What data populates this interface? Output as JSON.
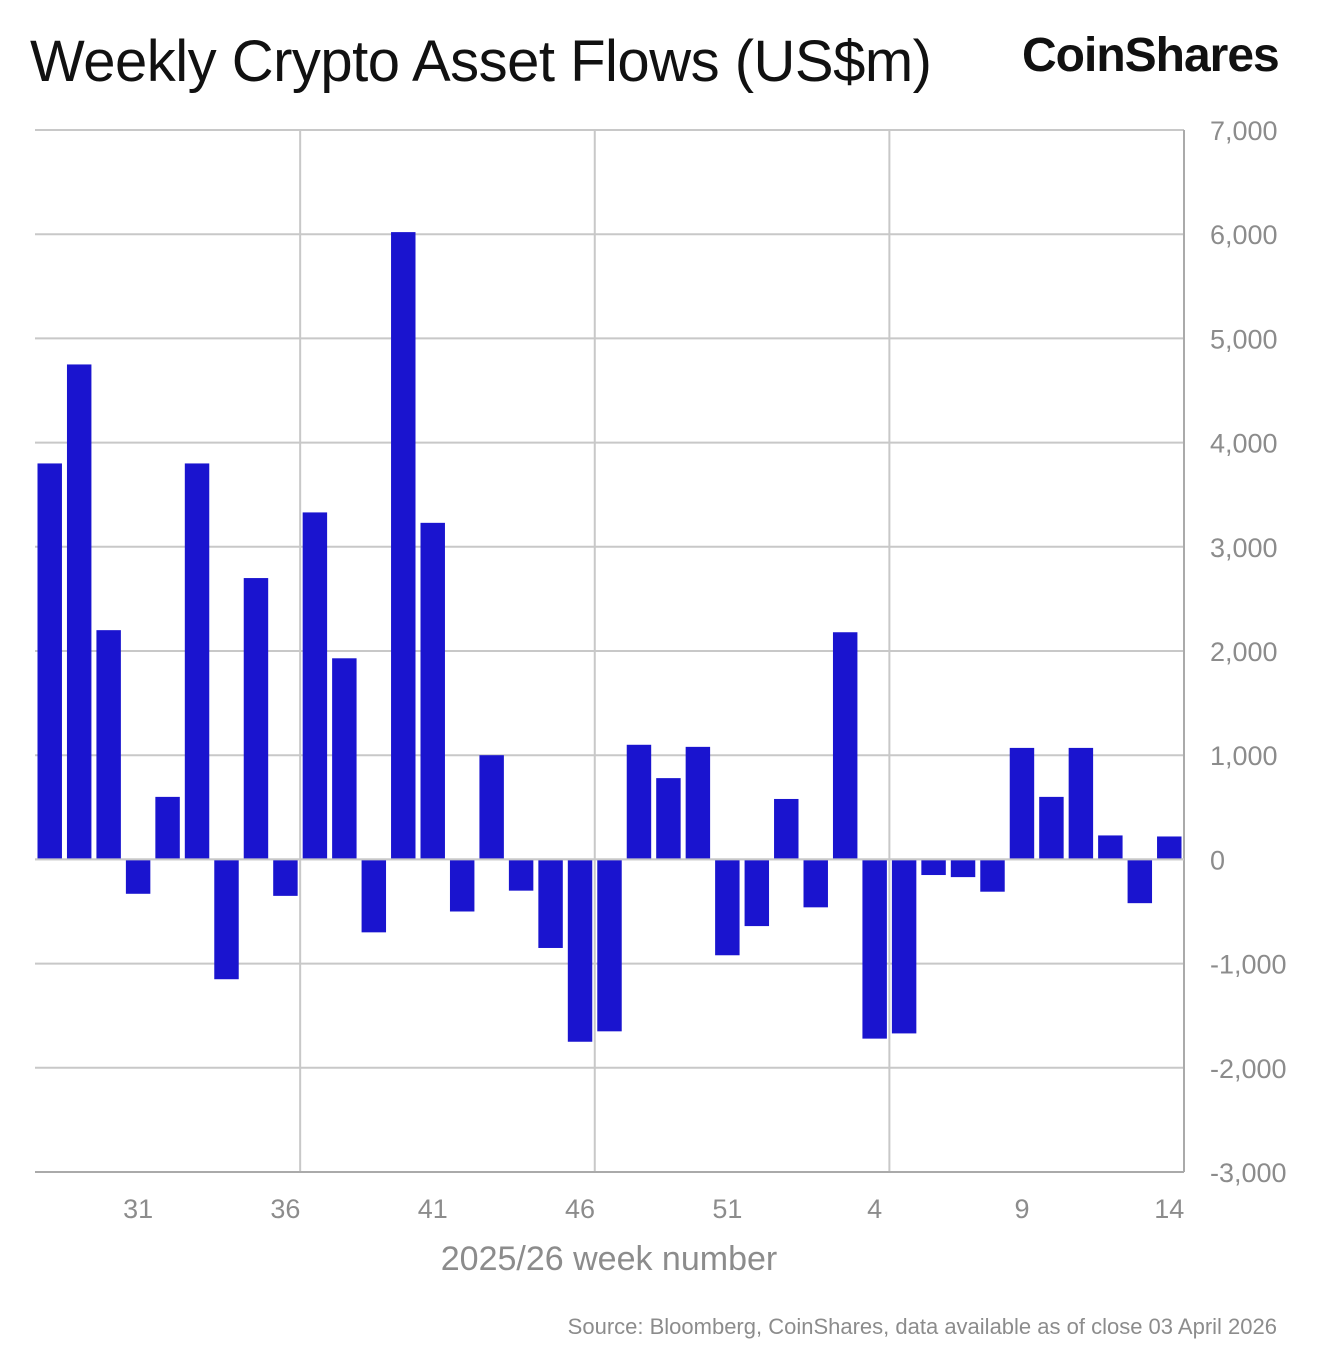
{
  "title": "Weekly Crypto Asset Flows (US$m)",
  "brand": "CoinShares",
  "source": "Source: Bloomberg, CoinShares, data available as of close 03 April 2026",
  "colors": {
    "bar": "#1a14cf",
    "grid": "#c8c8c8",
    "axis": "#aaaaaa",
    "text": "#8c8c8c"
  },
  "chart_data": {
    "type": "bar",
    "title": "Weekly Crypto Asset Flows (US$m)",
    "xlabel": "2025/26 week number",
    "ylabel": "",
    "ylim": [
      -3000,
      7000
    ],
    "y_ticks": [
      7000,
      6000,
      5000,
      4000,
      3000,
      2000,
      1000,
      0,
      -1000,
      -2000,
      -3000
    ],
    "y_tick_labels": [
      "7,000",
      "6,000",
      "5,000",
      "4,000",
      "3,000",
      "2,000",
      "1,000",
      "0",
      "-1,000",
      "-2,000",
      "-3,000"
    ],
    "x_tick_labels": [
      "31",
      "36",
      "41",
      "46",
      "51",
      "4",
      "9",
      "14"
    ],
    "x_tick_indices": [
      3,
      8,
      13,
      18,
      23,
      28,
      33,
      38
    ],
    "categories": [
      "28",
      "29",
      "30",
      "31",
      "32",
      "33",
      "34",
      "35",
      "36",
      "37",
      "38",
      "39",
      "40",
      "41",
      "42",
      "43",
      "44",
      "45",
      "46",
      "47",
      "48",
      "49",
      "50",
      "51",
      "52",
      "1",
      "2",
      "3",
      "4",
      "5",
      "6",
      "7",
      "8",
      "9",
      "10",
      "11",
      "12",
      "13",
      "14"
    ],
    "values": [
      3800,
      4750,
      2200,
      -330,
      600,
      3800,
      -1150,
      2700,
      -350,
      3330,
      1930,
      -700,
      6020,
      3230,
      -500,
      1000,
      -300,
      -850,
      -1750,
      -1650,
      1100,
      780,
      1080,
      -920,
      -640,
      580,
      -460,
      2180,
      -1720,
      -1670,
      -150,
      -170,
      -310,
      1070,
      600,
      1070,
      230,
      -420,
      220
    ],
    "series": [
      {
        "name": "Weekly flows (US$m)"
      }
    ],
    "grid": true,
    "legend": "none"
  }
}
